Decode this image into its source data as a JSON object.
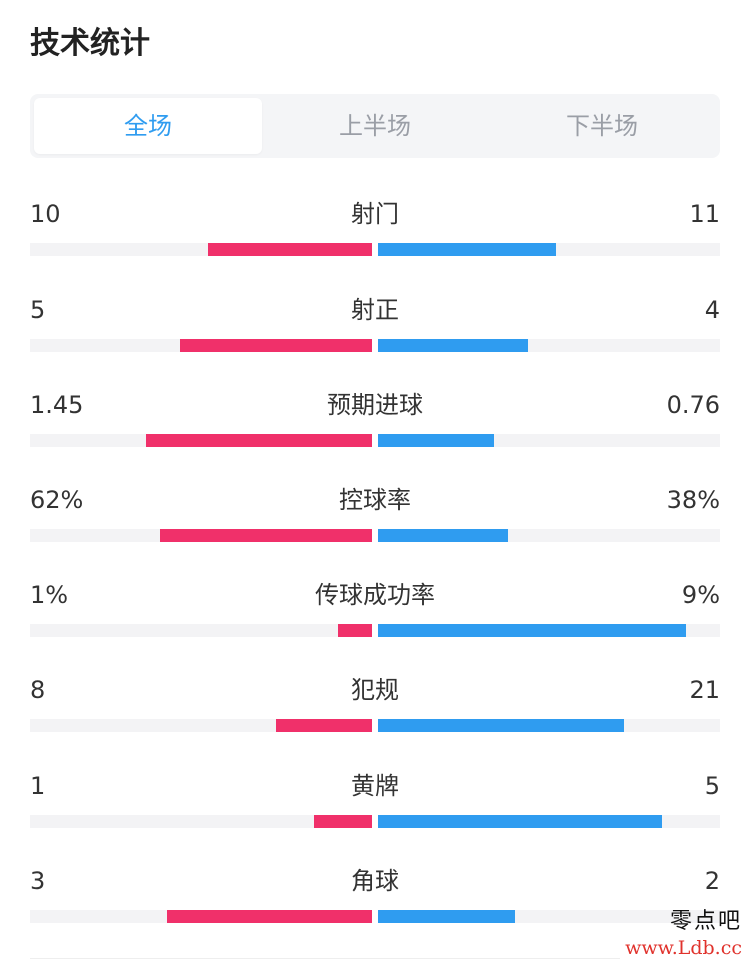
{
  "title": "技术统计",
  "tabs": [
    {
      "label": "全场",
      "active": true
    },
    {
      "label": "上半场",
      "active": false
    },
    {
      "label": "下半场",
      "active": false
    }
  ],
  "colors": {
    "home": "#f0306a",
    "away": "#2f9cf0",
    "track": "#f3f3f5",
    "tab_active": "#2f9cf0",
    "tab_inactive": "#9a9ea6"
  },
  "stats": [
    {
      "name": "射门",
      "home": "10",
      "away": "11",
      "home_level": 0.48,
      "away_level": 0.52
    },
    {
      "name": "射正",
      "home": "5",
      "away": "4",
      "home_level": 0.56,
      "away_level": 0.44
    },
    {
      "name": "预期进球",
      "home": "1.45",
      "away": "0.76",
      "home_level": 0.66,
      "away_level": 0.34
    },
    {
      "name": "控球率",
      "home": "62%",
      "away": "38%",
      "home_level": 0.62,
      "away_level": 0.38
    },
    {
      "name": "传球成功率",
      "home": "1%",
      "away": "9%",
      "home_level": 0.1,
      "away_level": 0.9
    },
    {
      "name": "犯规",
      "home": "8",
      "away": "21",
      "home_level": 0.28,
      "away_level": 0.72
    },
    {
      "name": "黄牌",
      "home": "1",
      "away": "5",
      "home_level": 0.17,
      "away_level": 0.83
    },
    {
      "name": "角球",
      "home": "3",
      "away": "2",
      "home_level": 0.6,
      "away_level": 0.4
    }
  ],
  "watermark": {
    "chinese": "零点吧",
    "url": "www.Ldb.cc"
  }
}
